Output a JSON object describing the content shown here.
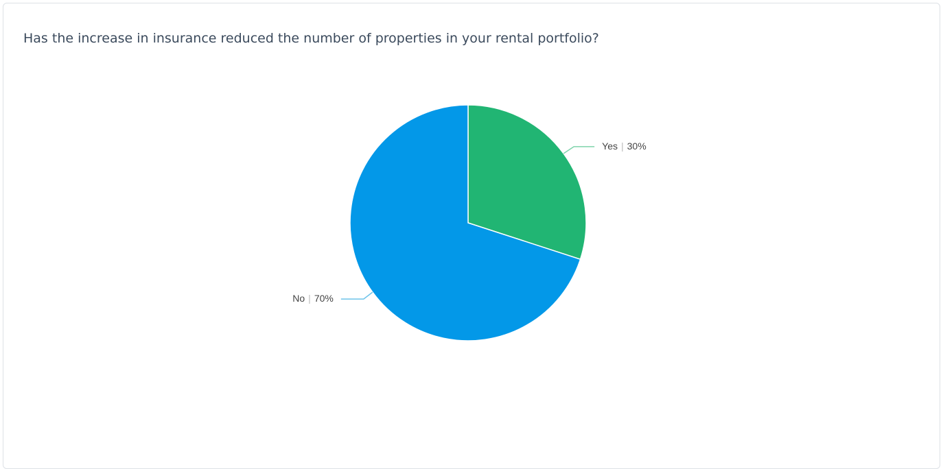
{
  "chart_data": {
    "type": "pie",
    "title": "Has the increase in insurance reduced the number of properties in your rental portfolio?",
    "categories": [
      "Yes",
      "No"
    ],
    "values": [
      30,
      70
    ],
    "value_labels": [
      "30%",
      "70%"
    ],
    "label_separator": "|",
    "colors": [
      "#21b573",
      "#0398e8"
    ],
    "leader_colors": [
      "#7ed3ab",
      "#6cc3ea"
    ]
  }
}
